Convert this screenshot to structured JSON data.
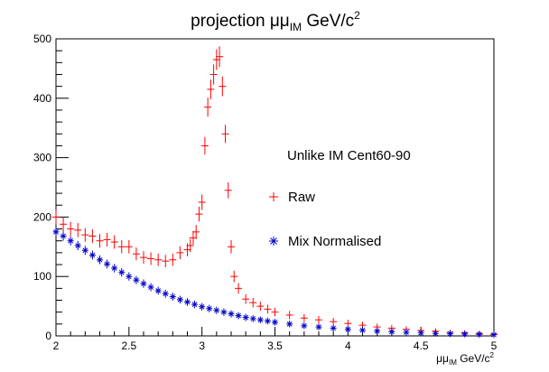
{
  "chart_data": {
    "type": "scatter",
    "title": {
      "main": "projection ",
      "mu": "μμ",
      "sub": "IM",
      "units": " GeV/c",
      "sup": "2"
    },
    "xlabel": {
      "mu": "μμ",
      "sub": "IM",
      "units": " GeV/c",
      "sup": "2"
    },
    "ylabel": "",
    "xlim": [
      2,
      5
    ],
    "ylim": [
      0,
      500
    ],
    "xticks": [
      "2",
      "2.5",
      "3",
      "3.5",
      "4",
      "4.5",
      "5"
    ],
    "yticks": [
      "0",
      "100",
      "200",
      "300",
      "400",
      "500"
    ],
    "legend": {
      "header": "Unlike IM Cent60-90",
      "entries": [
        "Raw",
        "Mix Normalised"
      ],
      "position": "center-right"
    },
    "series": [
      {
        "name": "Raw",
        "color": "#ff0000",
        "marker": "plus",
        "x": [
          2.0,
          2.05,
          2.1,
          2.15,
          2.2,
          2.25,
          2.3,
          2.35,
          2.4,
          2.45,
          2.5,
          2.55,
          2.6,
          2.65,
          2.7,
          2.75,
          2.8,
          2.85,
          2.9,
          2.92,
          2.94,
          2.96,
          2.98,
          3.0,
          3.02,
          3.04,
          3.06,
          3.08,
          3.1,
          3.12,
          3.14,
          3.16,
          3.18,
          3.2,
          3.22,
          3.25,
          3.3,
          3.35,
          3.4,
          3.45,
          3.5,
          3.6,
          3.7,
          3.8,
          3.9,
          4.0,
          4.1,
          4.2,
          4.3,
          4.4,
          4.5,
          4.6,
          4.7,
          4.8,
          4.9,
          5.0
        ],
        "y": [
          200,
          188,
          180,
          178,
          170,
          168,
          160,
          162,
          158,
          150,
          150,
          138,
          132,
          130,
          128,
          126,
          128,
          140,
          145,
          152,
          165,
          175,
          205,
          225,
          320,
          385,
          415,
          440,
          465,
          470,
          420,
          340,
          245,
          150,
          100,
          80,
          62,
          56,
          50,
          45,
          40,
          35,
          30,
          27,
          24,
          21,
          18,
          15,
          13,
          11,
          9,
          8,
          6,
          5,
          4,
          3
        ]
      },
      {
        "name": "Mix Normalised",
        "color": "#0000cc",
        "marker": "star",
        "x": [
          2.0,
          2.05,
          2.1,
          2.15,
          2.2,
          2.25,
          2.3,
          2.35,
          2.4,
          2.45,
          2.5,
          2.55,
          2.6,
          2.65,
          2.7,
          2.75,
          2.8,
          2.85,
          2.9,
          2.95,
          3.0,
          3.05,
          3.1,
          3.15,
          3.2,
          3.25,
          3.3,
          3.35,
          3.4,
          3.45,
          3.5,
          3.6,
          3.7,
          3.8,
          3.9,
          4.0,
          4.1,
          4.2,
          4.3,
          4.4,
          4.5,
          4.6,
          4.7,
          4.8,
          4.9,
          5.0
        ],
        "y": [
          175,
          168,
          160,
          152,
          144,
          136,
          128,
          121,
          114,
          107,
          100,
          94,
          88,
          82,
          76,
          71,
          66,
          61,
          57,
          53,
          49,
          46,
          43,
          40,
          37,
          34,
          31,
          29,
          27,
          25,
          23,
          20,
          17,
          15,
          13,
          11,
          9.5,
          8,
          7,
          6,
          5,
          4.3,
          3.6,
          3,
          2.5,
          2
        ]
      }
    ]
  }
}
